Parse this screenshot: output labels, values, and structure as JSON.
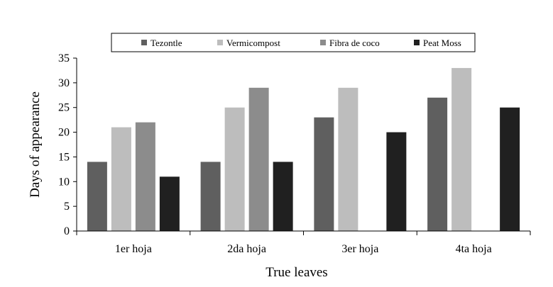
{
  "chart_data": {
    "type": "bar",
    "title": "",
    "xlabel": "True leaves",
    "ylabel": "Days of appearance",
    "ylim": [
      0,
      35
    ],
    "yticks": [
      0,
      5,
      10,
      15,
      20,
      25,
      30,
      35
    ],
    "grid": false,
    "legend_position": "top",
    "categories": [
      "1er hoja",
      "2da hoja",
      "3er hoja",
      "4ta hoja"
    ],
    "series": [
      {
        "name": "Tezontle",
        "color": "#5f5f5f",
        "values": [
          14,
          14,
          23,
          27
        ]
      },
      {
        "name": "Vermicompost",
        "color": "#bdbdbd",
        "values": [
          21,
          25,
          29,
          33
        ]
      },
      {
        "name": "Fibra de coco",
        "color": "#8c8c8c",
        "values": [
          22,
          29,
          0,
          0
        ]
      },
      {
        "name": "Peat Moss",
        "color": "#202020",
        "values": [
          11,
          14,
          20,
          25
        ]
      }
    ]
  }
}
